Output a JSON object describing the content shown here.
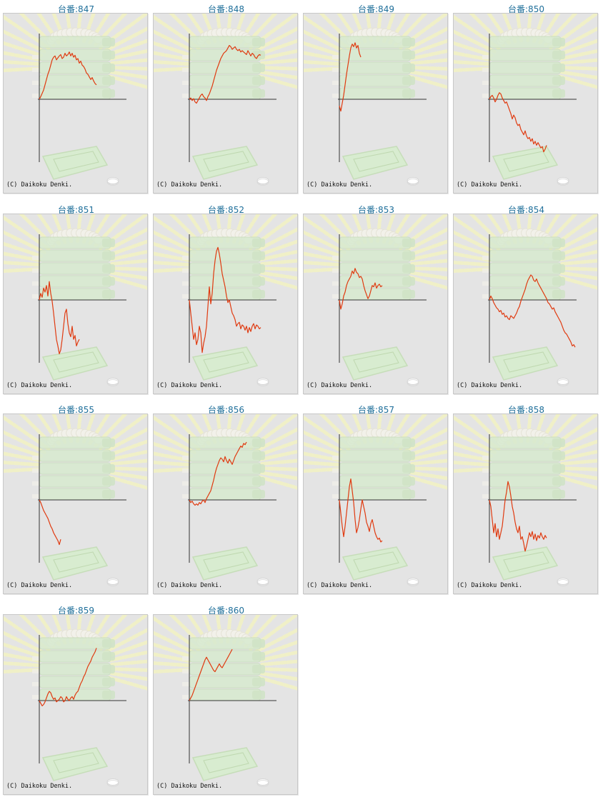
{
  "credit": "(C) Daikoku Denki.",
  "colors": {
    "line": "#e03a10",
    "axis": "#333333",
    "title": "#1f6f9a",
    "panel": "#e4e4e4"
  },
  "chart_data": [
    {
      "type": "line",
      "title": "台番:847",
      "x": [
        0,
        1,
        2,
        3,
        4,
        5,
        6,
        7,
        8,
        9,
        10,
        11,
        12,
        13,
        14,
        15,
        16,
        17,
        18,
        19,
        20,
        21,
        22,
        23,
        24,
        25,
        26,
        27,
        28,
        29,
        30,
        31,
        32,
        33,
        34,
        35,
        36,
        37,
        38,
        39,
        40
      ],
      "values": [
        0,
        4,
        9,
        14,
        22,
        30,
        38,
        44,
        52,
        60,
        64,
        66,
        60,
        63,
        66,
        68,
        62,
        64,
        70,
        66,
        68,
        72,
        66,
        70,
        64,
        67,
        60,
        62,
        55,
        58,
        52,
        50,
        46,
        40,
        38,
        34,
        30,
        33,
        28,
        24,
        22
      ]
    },
    {
      "type": "line",
      "title": "台番:848",
      "x": [
        0,
        1,
        2,
        3,
        4,
        5,
        6,
        7,
        8,
        9,
        10,
        11,
        12,
        13,
        14,
        15,
        16,
        17,
        18,
        19,
        20,
        21,
        22,
        23,
        24,
        25,
        26,
        27,
        28,
        29,
        30,
        31,
        32,
        33,
        34,
        35,
        36,
        37,
        38,
        39,
        40,
        41,
        42,
        43,
        44,
        45,
        46,
        47,
        48,
        49,
        50
      ],
      "values": [
        0,
        2,
        -2,
        1,
        -4,
        -6,
        -2,
        2,
        6,
        8,
        4,
        2,
        -2,
        4,
        8,
        14,
        20,
        28,
        36,
        44,
        50,
        56,
        62,
        66,
        70,
        72,
        74,
        78,
        82,
        80,
        76,
        78,
        80,
        76,
        74,
        76,
        72,
        74,
        72,
        70,
        68,
        74,
        70,
        66,
        70,
        68,
        64,
        62,
        66,
        68,
        67
      ]
    },
    {
      "type": "line",
      "title": "台番:849",
      "x": [
        0,
        1,
        2,
        3,
        4,
        5,
        6,
        7,
        8,
        9,
        10,
        11,
        12,
        13,
        14,
        15
      ],
      "values": [
        -10,
        -18,
        -6,
        6,
        22,
        38,
        52,
        66,
        78,
        84,
        80,
        86,
        78,
        82,
        70,
        64
      ]
    },
    {
      "type": "line",
      "title": "台番:850",
      "x": [
        0,
        1,
        2,
        3,
        4,
        5,
        6,
        7,
        8,
        9,
        10,
        11,
        12,
        13,
        14,
        15,
        16,
        17,
        18,
        19,
        20,
        21,
        22,
        23,
        24,
        25,
        26,
        27,
        28,
        29,
        30,
        31,
        32,
        33,
        34,
        35,
        36,
        37,
        38,
        39,
        40
      ],
      "values": [
        0,
        4,
        6,
        2,
        -4,
        0,
        6,
        10,
        8,
        2,
        -2,
        -6,
        -4,
        -10,
        -16,
        -22,
        -30,
        -24,
        -28,
        -36,
        -40,
        -38,
        -46,
        -50,
        -54,
        -48,
        -56,
        -60,
        -58,
        -64,
        -60,
        -68,
        -64,
        -70,
        -66,
        -70,
        -74,
        -72,
        -80,
        -76,
        -70
      ]
    },
    {
      "type": "line",
      "title": "台番:851",
      "x": [
        0,
        1,
        2,
        3,
        4,
        5,
        6,
        7,
        8,
        9,
        10,
        11,
        12,
        13,
        14,
        15,
        16,
        17,
        18,
        19,
        20,
        21,
        22,
        23,
        24,
        25,
        26,
        27,
        28
      ],
      "values": [
        0,
        10,
        4,
        18,
        12,
        22,
        6,
        28,
        10,
        -2,
        -20,
        -40,
        -60,
        -70,
        -82,
        -76,
        -60,
        -40,
        -20,
        -14,
        -36,
        -50,
        -56,
        -40,
        -60,
        -54,
        -70,
        -64,
        -60
      ]
    },
    {
      "type": "line",
      "title": "台番:852",
      "x": [
        0,
        1,
        2,
        3,
        4,
        5,
        6,
        7,
        8,
        9,
        10,
        11,
        12,
        13,
        14,
        15,
        16,
        17,
        18,
        19,
        20,
        21,
        22,
        23,
        24,
        25,
        26,
        27,
        28,
        29,
        30,
        31,
        32,
        33,
        34,
        35,
        36,
        37,
        38,
        39,
        40,
        41,
        42,
        43,
        44,
        45,
        46,
        47,
        48,
        49,
        50
      ],
      "values": [
        0,
        -20,
        -40,
        -60,
        -50,
        -68,
        -60,
        -40,
        -50,
        -80,
        -66,
        -56,
        -40,
        -10,
        20,
        -6,
        10,
        40,
        60,
        74,
        80,
        70,
        56,
        40,
        30,
        20,
        6,
        -4,
        0,
        -10,
        -20,
        -24,
        -30,
        -40,
        -36,
        -34,
        -44,
        -38,
        -40,
        -46,
        -40,
        -50,
        -42,
        -48,
        -40,
        -36,
        -44,
        -38,
        -40,
        -44,
        -42
      ]
    },
    {
      "type": "line",
      "title": "台番:853",
      "x": [
        0,
        1,
        2,
        3,
        4,
        5,
        6,
        7,
        8,
        9,
        10,
        11,
        12,
        13,
        14,
        15,
        16,
        17,
        18,
        19,
        20,
        21,
        22,
        23,
        24,
        25,
        26,
        27,
        28,
        29,
        30
      ],
      "values": [
        0,
        -14,
        -6,
        6,
        12,
        22,
        28,
        32,
        36,
        44,
        40,
        48,
        42,
        40,
        34,
        36,
        32,
        22,
        14,
        8,
        2,
        6,
        14,
        22,
        20,
        26,
        18,
        22,
        24,
        20,
        22
      ]
    },
    {
      "type": "line",
      "title": "台番:854",
      "x": [
        0,
        1,
        2,
        3,
        4,
        5,
        6,
        7,
        8,
        9,
        10,
        11,
        12,
        13,
        14,
        15,
        16,
        17,
        18,
        19,
        20,
        21,
        22,
        23,
        24,
        25,
        26,
        27,
        28,
        29,
        30,
        31,
        32,
        33,
        34,
        35,
        36,
        37,
        38,
        39,
        40,
        41,
        42,
        43,
        44,
        45,
        46,
        47,
        48,
        49,
        50,
        51,
        52,
        53,
        54,
        55,
        56,
        57,
        58,
        59,
        60
      ],
      "values": [
        0,
        6,
        2,
        -4,
        -8,
        -12,
        -14,
        -18,
        -16,
        -22,
        -20,
        -26,
        -24,
        -28,
        -30,
        -24,
        -26,
        -28,
        -24,
        -20,
        -14,
        -10,
        -2,
        4,
        10,
        16,
        24,
        30,
        34,
        38,
        36,
        30,
        28,
        32,
        26,
        22,
        18,
        14,
        10,
        6,
        2,
        -4,
        -6,
        -10,
        -14,
        -12,
        -18,
        -22,
        -26,
        -30,
        -34,
        -40,
        -46,
        -50,
        -52,
        -56,
        -60,
        -64,
        -70,
        -68,
        -72
      ]
    },
    {
      "type": "line",
      "title": "台番:855",
      "x": [
        0,
        1,
        2,
        3,
        4,
        5,
        6,
        7,
        8,
        9,
        10,
        11,
        12,
        13,
        14,
        15
      ],
      "values": [
        0,
        -4,
        -10,
        -16,
        -20,
        -24,
        -28,
        -34,
        -40,
        -44,
        -50,
        -54,
        -58,
        -62,
        -68,
        -60
      ]
    },
    {
      "type": "line",
      "title": "台番:856",
      "x": [
        0,
        1,
        2,
        3,
        4,
        5,
        6,
        7,
        8,
        9,
        10,
        11,
        12,
        13,
        14,
        15,
        16,
        17,
        18,
        19,
        20,
        21,
        22,
        23,
        24,
        25,
        26,
        27,
        28,
        29,
        30,
        31,
        32,
        33,
        34,
        35,
        36,
        37,
        38,
        39,
        40
      ],
      "values": [
        0,
        -4,
        -2,
        -6,
        -8,
        -6,
        -8,
        -4,
        -6,
        -2,
        0,
        -4,
        2,
        6,
        10,
        14,
        22,
        30,
        40,
        48,
        54,
        60,
        64,
        62,
        58,
        66,
        60,
        56,
        62,
        58,
        54,
        60,
        66,
        70,
        74,
        78,
        82,
        80,
        86,
        84,
        88
      ]
    },
    {
      "type": "line",
      "title": "台番:857",
      "x": [
        0,
        1,
        2,
        3,
        4,
        5,
        6,
        7,
        8,
        9,
        10,
        11,
        12,
        13,
        14,
        15,
        16,
        17,
        18,
        19,
        20,
        21,
        22,
        23,
        24,
        25,
        26,
        27,
        28,
        29,
        30
      ],
      "values": [
        0,
        -20,
        -40,
        -56,
        -40,
        -20,
        0,
        20,
        32,
        14,
        -4,
        -30,
        -50,
        -42,
        -30,
        -14,
        0,
        -10,
        -20,
        -34,
        -40,
        -48,
        -36,
        -30,
        -40,
        -50,
        -56,
        -60,
        -58,
        -64,
        -62
      ]
    },
    {
      "type": "line",
      "title": "台番:858",
      "x": [
        0,
        1,
        2,
        3,
        4,
        5,
        6,
        7,
        8,
        9,
        10,
        11,
        12,
        13,
        14,
        15,
        16,
        17,
        18,
        19,
        20,
        21,
        22,
        23,
        24,
        25,
        26,
        27,
        28,
        29,
        30,
        31,
        32,
        33,
        34,
        35,
        36,
        37,
        38,
        39,
        40
      ],
      "values": [
        0,
        -10,
        -30,
        -50,
        -36,
        -56,
        -44,
        -60,
        -50,
        -40,
        -20,
        0,
        12,
        28,
        20,
        6,
        -10,
        -20,
        -34,
        -44,
        -50,
        -40,
        -60,
        -56,
        -66,
        -78,
        -70,
        -60,
        -50,
        -56,
        -48,
        -60,
        -52,
        -62,
        -54,
        -58,
        -50,
        -56,
        -60,
        -54,
        -58
      ]
    },
    {
      "type": "line",
      "title": "台番:859",
      "x": [
        0,
        1,
        2,
        3,
        4,
        5,
        6,
        7,
        8,
        9,
        10,
        11,
        12,
        13,
        14,
        15,
        16,
        17,
        18,
        19,
        20,
        21,
        22,
        23,
        24,
        25,
        26,
        27,
        28,
        29,
        30,
        31,
        32,
        33,
        34,
        35,
        36,
        37,
        38,
        39,
        40
      ],
      "values": [
        0,
        -4,
        -8,
        -6,
        -2,
        4,
        10,
        14,
        12,
        6,
        2,
        4,
        -2,
        0,
        2,
        6,
        4,
        -2,
        0,
        6,
        2,
        0,
        4,
        6,
        2,
        8,
        12,
        14,
        20,
        26,
        30,
        36,
        40,
        46,
        52,
        56,
        60,
        66,
        70,
        74,
        80
      ]
    },
    {
      "type": "line",
      "title": "台番:860",
      "x": [
        0,
        1,
        2,
        3,
        4,
        5,
        6,
        7,
        8,
        9,
        10,
        11,
        12,
        13,
        14,
        15,
        16,
        17,
        18,
        19,
        20,
        21,
        22,
        23,
        24,
        25,
        26,
        27,
        28,
        29,
        30
      ],
      "values": [
        0,
        4,
        8,
        14,
        20,
        26,
        32,
        38,
        44,
        50,
        56,
        62,
        66,
        62,
        58,
        54,
        50,
        46,
        44,
        48,
        52,
        56,
        52,
        50,
        54,
        58,
        62,
        66,
        70,
        74,
        78
      ]
    }
  ]
}
